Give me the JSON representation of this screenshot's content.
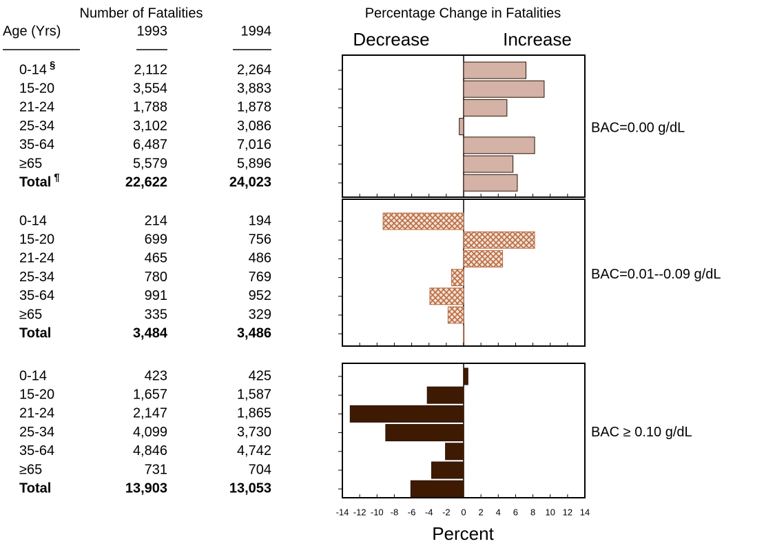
{
  "chart_data": {
    "type": "bar",
    "orientation": "horizontal",
    "table_title": "Number of Fatalities",
    "columns": [
      "Age (Yrs)",
      "1993",
      "1994"
    ],
    "title": "Percentage Change in Fatalities",
    "decrease_label": "Decrease",
    "increase_label": "Increase",
    "xlabel": "Percent",
    "xlim": [
      -14,
      14
    ],
    "xticks": [
      -14,
      -12,
      -10,
      -8,
      -6,
      -4,
      -2,
      0,
      2,
      4,
      6,
      8,
      10,
      12,
      14
    ],
    "panels": [
      {
        "label": "BAC=0.00 g/dL",
        "pattern": "solid",
        "color": "#d4b2a6",
        "categories": [
          "0-14",
          "15-20",
          "21-24",
          "25-34",
          "35-64",
          "≥65",
          "Total"
        ],
        "markers": [
          "§",
          null,
          null,
          null,
          null,
          null,
          "¶"
        ],
        "fatalities_1993": [
          "2,112",
          "3,554",
          "1,788",
          "3,102",
          "6,487",
          "5,579",
          "22,622"
        ],
        "fatalities_1994": [
          "2,264",
          "3,883",
          "1,878",
          "3,086",
          "7,016",
          "5,896",
          "24,023"
        ],
        "values": [
          7.2,
          9.3,
          5.0,
          -0.5,
          8.2,
          5.7,
          6.2
        ]
      },
      {
        "label": "BAC=0.01--0.09 g/dL",
        "pattern": "crosshatch",
        "color": "#b86a40",
        "categories": [
          "0-14",
          "15-20",
          "21-24",
          "25-34",
          "35-64",
          "≥65",
          "Total"
        ],
        "fatalities_1993": [
          "214",
          "699",
          "465",
          "780",
          "991",
          "335",
          "3,484"
        ],
        "fatalities_1994": [
          "194",
          "756",
          "486",
          "769",
          "952",
          "329",
          "3,486"
        ],
        "values": [
          -9.3,
          8.2,
          4.5,
          -1.4,
          -3.9,
          -1.8,
          0.06
        ]
      },
      {
        "label": "BAC ≥ 0.10 g/dL",
        "pattern": "solid",
        "color": "#3f1a02",
        "categories": [
          "0-14",
          "15-20",
          "21-24",
          "25-34",
          "35-64",
          "≥65",
          "Total"
        ],
        "fatalities_1993": [
          "423",
          "1,657",
          "2,147",
          "4,099",
          "4,846",
          "731",
          "13,903"
        ],
        "fatalities_1994": [
          "425",
          "1,587",
          "1,865",
          "3,730",
          "4,742",
          "704",
          "13,053"
        ],
        "values": [
          0.5,
          -4.2,
          -13.1,
          -9.0,
          -2.1,
          -3.7,
          -6.1
        ]
      }
    ]
  }
}
